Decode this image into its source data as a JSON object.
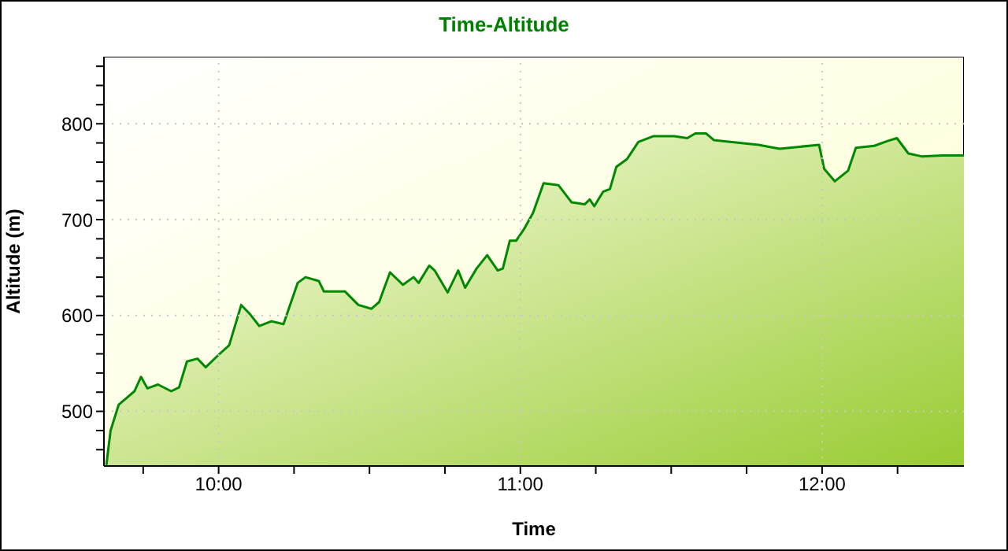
{
  "chart_data": {
    "type": "area",
    "title": "Time-Altitude",
    "xlabel": "Time",
    "ylabel": "Altitude (m)",
    "x": [
      9.628,
      9.642,
      9.669,
      9.695,
      9.721,
      9.743,
      9.764,
      9.799,
      9.843,
      9.869,
      9.895,
      9.93,
      9.957,
      10.0,
      10.035,
      10.075,
      10.105,
      10.135,
      10.175,
      10.215,
      10.262,
      10.288,
      10.332,
      10.349,
      10.419,
      10.463,
      10.506,
      10.532,
      10.568,
      10.611,
      10.646,
      10.663,
      10.698,
      10.716,
      10.759,
      10.794,
      10.817,
      10.855,
      10.89,
      10.925,
      10.942,
      10.965,
      10.986,
      11.012,
      11.042,
      11.077,
      11.126,
      11.17,
      11.213,
      11.23,
      11.245,
      11.274,
      11.297,
      11.318,
      11.353,
      11.391,
      11.44,
      11.51,
      11.553,
      11.58,
      11.615,
      11.641,
      11.702,
      11.789,
      11.859,
      11.99,
      12.007,
      12.042,
      12.086,
      12.112,
      12.173,
      12.217,
      12.248,
      12.286,
      12.33,
      12.4,
      12.47
    ],
    "series": [
      {
        "color": "#008800",
        "values": [
          444,
          480,
          507,
          514,
          521,
          536,
          524,
          528,
          521,
          525,
          552,
          555,
          546,
          559,
          569,
          611,
          601,
          589,
          594,
          591,
          634,
          640,
          636,
          625,
          625,
          611,
          607,
          614,
          645,
          632,
          640,
          634,
          652,
          647,
          624,
          647,
          629,
          649,
          663,
          647,
          649,
          678,
          678,
          690,
          707,
          738,
          736,
          718,
          716,
          721,
          714,
          729,
          732,
          755,
          763,
          781,
          787,
          787,
          785,
          790,
          790,
          783,
          781,
          778,
          774,
          778,
          753,
          740,
          751,
          775,
          777,
          782,
          785,
          769,
          766,
          767,
          767
        ]
      }
    ],
    "xlim": [
      9.62,
      12.47
    ],
    "xticks": [
      {
        "value": 9.75,
        "label": null
      },
      {
        "value": 10,
        "label": "10:00"
      },
      {
        "value": 10.25,
        "label": null
      },
      {
        "value": 10.5,
        "label": null
      },
      {
        "value": 10.75,
        "label": null
      },
      {
        "value": 11,
        "label": "11:00"
      },
      {
        "value": 11.25,
        "label": null
      },
      {
        "value": 11.5,
        "label": null
      },
      {
        "value": 11.75,
        "label": null
      },
      {
        "value": 12,
        "label": "12:00"
      },
      {
        "value": 12.25,
        "label": null
      }
    ],
    "ylim": [
      443,
      870
    ],
    "yticks": [
      {
        "value": 460,
        "label": null
      },
      {
        "value": 480,
        "label": null
      },
      500,
      {
        "value": 520,
        "label": null
      },
      {
        "value": 540,
        "label": null
      },
      {
        "value": 560,
        "label": null
      },
      {
        "value": 580,
        "label": null
      },
      600,
      {
        "value": 620,
        "label": null
      },
      {
        "value": 640,
        "label": null
      },
      {
        "value": 660,
        "label": null
      },
      {
        "value": 680,
        "label": null
      },
      700,
      {
        "value": 720,
        "label": null
      },
      {
        "value": 740,
        "label": null
      },
      {
        "value": 760,
        "label": null
      },
      {
        "value": 780,
        "label": null
      },
      800,
      {
        "value": 820,
        "label": null
      },
      {
        "value": 840,
        "label": null
      },
      {
        "value": 860,
        "label": null
      }
    ],
    "grid": true
  }
}
